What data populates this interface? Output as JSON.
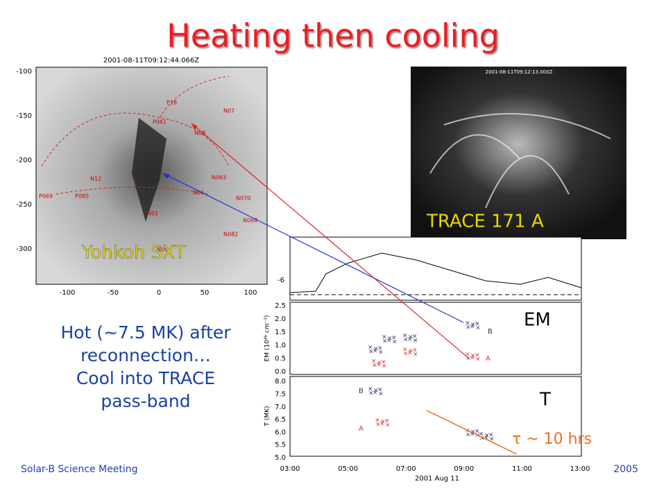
{
  "header": {
    "title": "Heating then cooling"
  },
  "sxt": {
    "timestamp": "2001-08-11T09:12:44.066Z",
    "label": "Yohkoh SXT",
    "yticks": [
      "-100",
      "-150",
      "-200",
      "-250",
      "-300"
    ],
    "xticks": [
      "-100",
      "-50",
      "0",
      "50",
      "100"
    ],
    "features": [
      "P18",
      "N07",
      "P061",
      "N08",
      "N063",
      "N12",
      "P069",
      "P085",
      "N06",
      "N070",
      "N01",
      "N068",
      "N082",
      "N09"
    ]
  },
  "trace": {
    "timestamp": "2001-08-11T09:12:13.000Z",
    "label": "TRACE 171 A"
  },
  "plots": {
    "top_tick": "-6",
    "em": {
      "ylabel": "EM (10⁴⁶ cm⁻³)",
      "yticks": [
        "0.0",
        "0.5",
        "1.0",
        "1.5",
        "2.0",
        "2.5"
      ],
      "labels": [
        "A",
        "B"
      ],
      "tag": "EM"
    },
    "t": {
      "ylabel": "T (MK)",
      "yticks": [
        "5.0",
        "5.5",
        "6.0",
        "6.5",
        "7.0",
        "7.5",
        "8.0"
      ],
      "labels": [
        "A",
        "B"
      ],
      "tag": "T"
    },
    "xticks": [
      "03:00",
      "05:00",
      "07:00",
      "09:00",
      "11:00",
      "13:00"
    ],
    "xlabel": "2001 Aug 11",
    "tau": "τ ~ 10 hrs"
  },
  "body": {
    "lines": [
      "Hot (~7.5 MK) after",
      "reconnection…",
      "Cool into TRACE",
      "pass-band"
    ]
  },
  "footer": {
    "left": "Solar-B Science Meeting",
    "right": "2005"
  }
}
